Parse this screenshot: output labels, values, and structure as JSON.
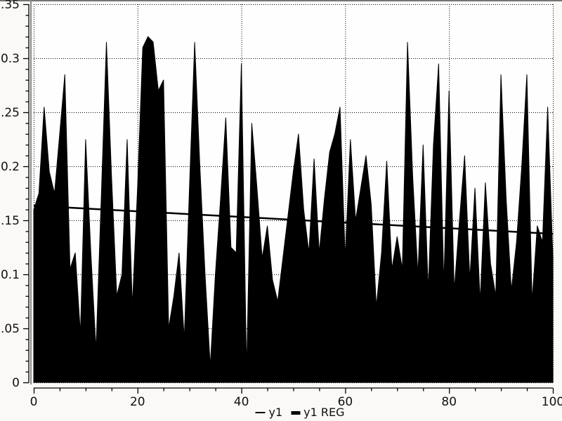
{
  "chart_data": {
    "type": "area",
    "title": "",
    "xlabel": "",
    "ylabel": "",
    "xlim": [
      0,
      100
    ],
    "ylim": [
      0,
      0.35
    ],
    "x_ticks_major": [
      0,
      20,
      40,
      60,
      80,
      100
    ],
    "x_tick_labels": [
      "0",
      "20",
      "40",
      "60",
      "80",
      "100"
    ],
    "x_minor_step": 5,
    "y_ticks_major": [
      0,
      0.05,
      0.1,
      0.15,
      0.2,
      0.25,
      0.3,
      0.35
    ],
    "y_tick_labels": [
      "0",
      "0.05",
      "0.1",
      "0.15",
      "0.2",
      "0.25",
      "0.3",
      "0.35"
    ],
    "y_minor_step": 0.01,
    "grid": "dotted",
    "x_start": 0,
    "x_step": 1,
    "series": [
      {
        "name": "y1",
        "type": "area",
        "color": "#000000",
        "values": [
          0.16,
          0.175,
          0.255,
          0.195,
          0.175,
          0.23,
          0.285,
          0.105,
          0.12,
          0.045,
          0.225,
          0.12,
          0.03,
          0.17,
          0.315,
          0.19,
          0.08,
          0.1,
          0.225,
          0.07,
          0.18,
          0.31,
          0.32,
          0.315,
          0.27,
          0.28,
          0.05,
          0.08,
          0.12,
          0.04,
          0.18,
          0.315,
          0.2,
          0.1,
          0.015,
          0.1,
          0.17,
          0.245,
          0.125,
          0.12,
          0.295,
          0.01,
          0.24,
          0.18,
          0.115,
          0.145,
          0.095,
          0.075,
          0.115,
          0.155,
          0.195,
          0.23,
          0.16,
          0.12,
          0.207,
          0.12,
          0.17,
          0.213,
          0.23,
          0.255,
          0.115,
          0.225,
          0.15,
          0.18,
          0.21,
          0.165,
          0.07,
          0.12,
          0.205,
          0.105,
          0.135,
          0.105,
          0.315,
          0.19,
          0.1,
          0.22,
          0.085,
          0.22,
          0.295,
          0.09,
          0.27,
          0.085,
          0.15,
          0.21,
          0.095,
          0.18,
          0.075,
          0.185,
          0.11,
          0.08,
          0.285,
          0.17,
          0.085,
          0.13,
          0.2,
          0.285,
          0.075,
          0.145,
          0.13,
          0.255,
          0.115
        ]
      },
      {
        "name": "y1 REG",
        "type": "line",
        "color": "#000000",
        "x": [
          0,
          100
        ],
        "values": [
          0.1635,
          0.1375
        ]
      }
    ],
    "legend": {
      "position": "bottom-center",
      "entries": [
        {
          "label": "y1",
          "marker": "thin-line"
        },
        {
          "label": "y1 REG",
          "marker": "thick-line"
        }
      ]
    }
  },
  "colors": {
    "series": "#000000",
    "grid": "#000000",
    "axis": "#000000",
    "frame": "#757575",
    "plot_background": "#fefefe",
    "page_background": "#faf9f7"
  }
}
